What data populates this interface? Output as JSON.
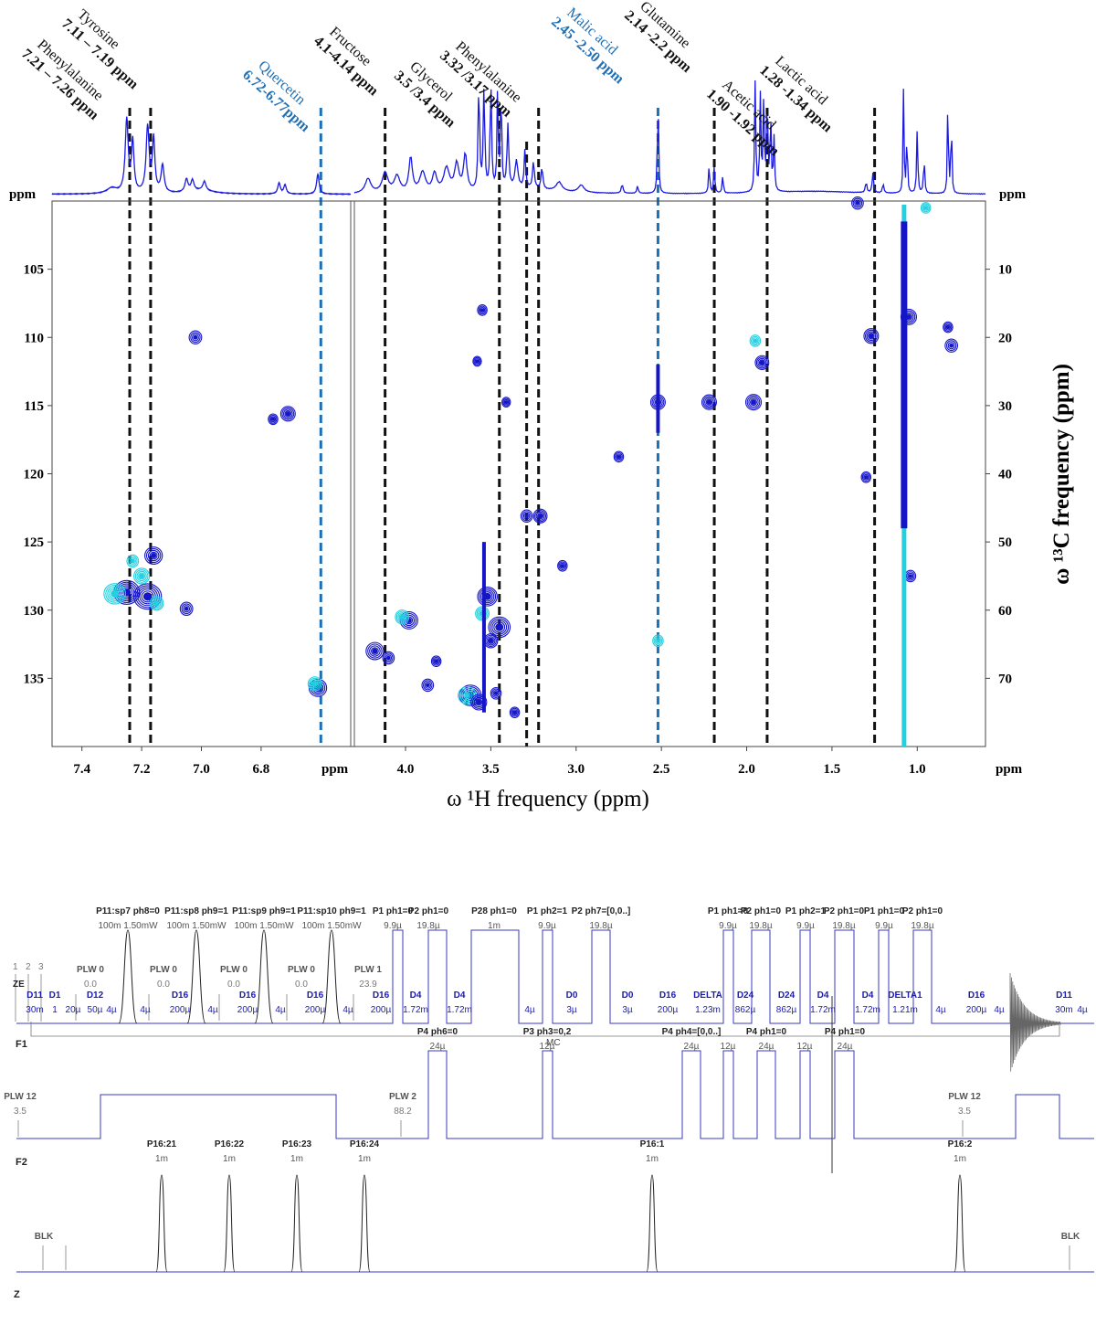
{
  "chart_data": {
    "type": "heatmap",
    "title": "",
    "xlabel": "ω ¹H frequency (ppm)",
    "ylabel_right": "ω ¹³C frequency (ppm)",
    "unit_label": "ppm",
    "left_panel": {
      "xlim": [
        7.5,
        6.5
      ],
      "xticks": [
        "7.4",
        "7.2",
        "7.0",
        "6.8"
      ],
      "ylim": [
        100,
        140
      ],
      "yticks": [
        "105",
        "110",
        "115",
        "120",
        "125",
        "130",
        "135"
      ]
    },
    "right_panel": {
      "xlim": [
        4.3,
        0.6
      ],
      "xticks": [
        "4.0",
        "3.5",
        "3.0",
        "2.5",
        "2.0",
        "1.5",
        "1.0"
      ],
      "ylim": [
        0,
        80
      ],
      "yticks": [
        "10",
        "20",
        "30",
        "40",
        "50",
        "60",
        "70"
      ]
    },
    "annotations": [
      {
        "name": "Phenylalanine",
        "range": "7.21 – 7.26 ppm",
        "x": 7.24,
        "panel": "left",
        "color": "#111111"
      },
      {
        "name": "Tyrosine",
        "range": "7.11 – 7.19 ppm",
        "x": 7.17,
        "panel": "left",
        "color": "#111111"
      },
      {
        "name": "Quercetin",
        "range": "6.72-6.77ppm",
        "x": 6.6,
        "panel": "left",
        "color": "#1f6fb4"
      },
      {
        "name": "Fructose",
        "range": "4.1-4.14 ppm",
        "x": 4.12,
        "panel": "right",
        "color": "#111111"
      },
      {
        "name": "Glycerol",
        "range": "3.5 /3.4 ppm",
        "x": 3.45,
        "panel": "right",
        "color": "#111111"
      },
      {
        "name": "Phenylalanine",
        "range": "3.32 /3.17 ppm",
        "x": 3.22,
        "panel": "right",
        "color": "#111111"
      },
      {
        "name": "Malic acid",
        "range": "2.45 -2.50 ppm",
        "x": 2.52,
        "panel": "right",
        "color": "#1f6fb4"
      },
      {
        "name": "Glutamine",
        "range": "2.14 -2.2 ppm",
        "x": 2.19,
        "panel": "right",
        "color": "#111111"
      },
      {
        "name": "Acetic acid",
        "range": "1.90 -1.92 ppm",
        "x": 1.88,
        "panel": "right",
        "color": "#111111"
      },
      {
        "name": "Lactic acid",
        "range": "1.28 -1.34 ppm",
        "x": 1.25,
        "panel": "right",
        "color": "#111111"
      }
    ],
    "extra_dashed_x": [
      3.29
    ],
    "cross_peaks_left": [
      {
        "x": 7.25,
        "y": 128.7,
        "s": 1.0
      },
      {
        "x": 7.18,
        "y": 129.0,
        "s": 1.1
      },
      {
        "x": 7.16,
        "y": 126.0,
        "s": 0.6
      },
      {
        "x": 7.29,
        "y": 128.8,
        "s": 0.8,
        "c": "cyan"
      },
      {
        "x": 7.2,
        "y": 127.5,
        "s": 0.5,
        "c": "cyan"
      },
      {
        "x": 7.23,
        "y": 126.4,
        "s": 0.3,
        "c": "cyan"
      },
      {
        "x": 7.15,
        "y": 129.5,
        "s": 0.4,
        "c": "cyan"
      },
      {
        "x": 7.05,
        "y": 129.9,
        "s": 0.35
      },
      {
        "x": 7.02,
        "y": 110.0,
        "s": 0.35
      },
      {
        "x": 6.71,
        "y": 115.6,
        "s": 0.45
      },
      {
        "x": 6.76,
        "y": 116.0,
        "s": 0.2
      },
      {
        "x": 6.61,
        "y": 135.7,
        "s": 0.6
      },
      {
        "x": 6.62,
        "y": 135.4,
        "s": 0.4,
        "c": "cyan"
      }
    ],
    "cross_peaks_right": [
      {
        "x": 4.18,
        "y": 66.0,
        "s": 0.6
      },
      {
        "x": 4.1,
        "y": 67.0,
        "s": 0.3
      },
      {
        "x": 3.98,
        "y": 61.5,
        "s": 0.6
      },
      {
        "x": 4.02,
        "y": 61.0,
        "s": 0.4,
        "c": "cyan"
      },
      {
        "x": 3.87,
        "y": 71.0,
        "s": 0.3
      },
      {
        "x": 3.82,
        "y": 67.5,
        "s": 0.2
      },
      {
        "x": 3.62,
        "y": 72.5,
        "s": 0.8
      },
      {
        "x": 3.64,
        "y": 72.5,
        "s": 0.6,
        "c": "cyan"
      },
      {
        "x": 3.52,
        "y": 58.0,
        "s": 0.7
      },
      {
        "x": 3.55,
        "y": 60.5,
        "s": 0.4,
        "c": "cyan"
      },
      {
        "x": 3.45,
        "y": 62.5,
        "s": 0.8
      },
      {
        "x": 3.5,
        "y": 64.5,
        "s": 0.4
      },
      {
        "x": 3.57,
        "y": 73.5,
        "s": 0.5
      },
      {
        "x": 3.47,
        "y": 72.2,
        "s": 0.25
      },
      {
        "x": 3.55,
        "y": 16.0,
        "s": 0.2
      },
      {
        "x": 3.58,
        "y": 23.5,
        "s": 0.15
      },
      {
        "x": 3.41,
        "y": 29.5,
        "s": 0.15
      },
      {
        "x": 3.29,
        "y": 46.2,
        "s": 0.3
      },
      {
        "x": 3.21,
        "y": 46.2,
        "s": 0.4
      },
      {
        "x": 3.08,
        "y": 53.5,
        "s": 0.2
      },
      {
        "x": 3.36,
        "y": 75.0,
        "s": 0.2
      },
      {
        "x": 2.75,
        "y": 37.5,
        "s": 0.2
      },
      {
        "x": 2.52,
        "y": 29.5,
        "s": 0.45
      },
      {
        "x": 2.52,
        "y": 64.5,
        "s": 0.25,
        "c": "cyan"
      },
      {
        "x": 2.22,
        "y": 29.5,
        "s": 0.45
      },
      {
        "x": 1.96,
        "y": 29.5,
        "s": 0.5
      },
      {
        "x": 1.95,
        "y": 20.5,
        "s": 0.25,
        "c": "cyan"
      },
      {
        "x": 1.91,
        "y": 23.7,
        "s": 0.4
      },
      {
        "x": 1.27,
        "y": 19.8,
        "s": 0.45
      },
      {
        "x": 1.3,
        "y": 40.5,
        "s": 0.2
      },
      {
        "x": 1.05,
        "y": 17.0,
        "s": 0.5
      },
      {
        "x": 1.04,
        "y": 55.0,
        "s": 0.25
      },
      {
        "x": 0.8,
        "y": 21.2,
        "s": 0.35
      },
      {
        "x": 0.82,
        "y": 18.5,
        "s": 0.2
      },
      {
        "x": 0.95,
        "y": 1.0,
        "s": 0.2,
        "c": "cyan"
      },
      {
        "x": 1.35,
        "y": 0.3,
        "s": 0.3
      }
    ],
    "colors": {
      "peak": "#1515c8",
      "peak_light": "#22d0e0",
      "spectrum": "#1a1ae0",
      "dash_black": "#111111",
      "dash_blue": "#1f6fb4",
      "tick_text": "#000000"
    }
  },
  "pulse_program": {
    "channel_labels": [
      "F1",
      "F2",
      "Z"
    ],
    "top_labels": [
      {
        "title": "P11:sp7 ph8=0",
        "value": "100m  1.50mW"
      },
      {
        "title": "P11:sp8 ph9=1",
        "value": "100m  1.50mW"
      },
      {
        "title": "P11:sp9 ph9=1",
        "value": "100m  1.50mW"
      },
      {
        "title": "P11:sp10 ph9=1",
        "value": "100m  1.50mW"
      },
      {
        "title": "P1 ph1=0",
        "value": "9.9µ"
      },
      {
        "title": "P2 ph1=0",
        "value": "19.8µ"
      },
      {
        "title": "P28 ph1=0",
        "value": "1m"
      },
      {
        "title": "P1 ph2=1",
        "value": "9.9µ"
      },
      {
        "title": "P2 ph7=[0,0..]",
        "value": "19.8µ"
      },
      {
        "title": "P1 ph1=0",
        "value": "9.9µ"
      },
      {
        "title": "P2 ph1=0",
        "value": "19.8µ"
      },
      {
        "title": "P1 ph2=1",
        "value": "9.9µ"
      },
      {
        "title": "P2 ph1=0",
        "value": "19.8µ"
      },
      {
        "title": "P1 ph1=0",
        "value": "9.9µ"
      },
      {
        "title": "P2 ph1=0",
        "value": "19.8µ"
      }
    ],
    "f1_power": [
      {
        "title": "PLW 0",
        "value": "0.0"
      },
      {
        "title": "PLW 0",
        "value": "0.0"
      },
      {
        "title": "PLW 0",
        "value": "0.0"
      },
      {
        "title": "PLW 0",
        "value": "0.0"
      },
      {
        "title": "PLW 1",
        "value": "23.9"
      }
    ],
    "f1_delays": [
      {
        "title": "D11",
        "value": "30m"
      },
      {
        "title": "D1",
        "value": "1"
      },
      {
        "title": "D12",
        "value": "50µ"
      },
      {
        "title": "D16",
        "value": "200µ"
      },
      {
        "title": "D16",
        "value": "200µ"
      },
      {
        "title": "D16",
        "value": "200µ"
      },
      {
        "title": "D16",
        "value": "200µ"
      },
      {
        "title": "D4",
        "value": "1.72m"
      },
      {
        "title": "D4",
        "value": "1.72m"
      },
      {
        "title": "D0",
        "value": "3µ"
      },
      {
        "title": "D0",
        "value": "3µ"
      },
      {
        "title": "D16",
        "value": "200µ"
      },
      {
        "title": "DELTA",
        "value": "1.23m"
      },
      {
        "title": "D24",
        "value": "862µ"
      },
      {
        "title": "D24",
        "value": "862µ"
      },
      {
        "title": "D4",
        "value": "1.72m"
      },
      {
        "title": "D4",
        "value": "1.72m"
      },
      {
        "title": "DELTA1",
        "value": "1.21m"
      },
      {
        "title": "D16",
        "value": "200µ"
      },
      {
        "title": "D11",
        "value": "30m"
      }
    ],
    "small_values": [
      "20µ",
      "4µ",
      "4µ",
      "4µ",
      "4µ",
      "4µ",
      "4µ",
      "4µ",
      "4µ",
      "4µ"
    ],
    "markers": [
      "1",
      "2",
      "3"
    ],
    "ze_label": "ZE",
    "mc_label": "MC",
    "f2_top": [
      {
        "title": "P4 ph6=0",
        "value": "24µ"
      },
      {
        "title": "P3 ph3=0,2",
        "value": "12µ"
      },
      {
        "title": "P4 ph4=[0,0..]",
        "value": "24µ"
      },
      {
        "title": "P4 ph1=0",
        "value": "24µ"
      },
      {
        "title": "P4 ph1=0",
        "value": "24µ"
      }
    ],
    "f2_small": [
      "12µ",
      "12µ"
    ],
    "f2_power": [
      {
        "title": "PLW 12",
        "value": "3.5"
      },
      {
        "title": "PLW 2",
        "value": "88.2"
      },
      {
        "title": "PLW 12",
        "value": "3.5"
      }
    ],
    "gradients": [
      {
        "title": "P16:21",
        "value": "1m"
      },
      {
        "title": "P16:22",
        "value": "1m"
      },
      {
        "title": "P16:23",
        "value": "1m"
      },
      {
        "title": "P16:24",
        "value": "1m"
      },
      {
        "title": "P16:1",
        "value": "1m"
      },
      {
        "title": "P16:2",
        "value": "1m"
      }
    ],
    "blk_labels": [
      "BLK",
      "BLK"
    ],
    "colors": {
      "line": "#3a3ac0",
      "pulse": "#222222",
      "label_blue": "#1a1ab4",
      "label_gray": "#555555"
    }
  }
}
